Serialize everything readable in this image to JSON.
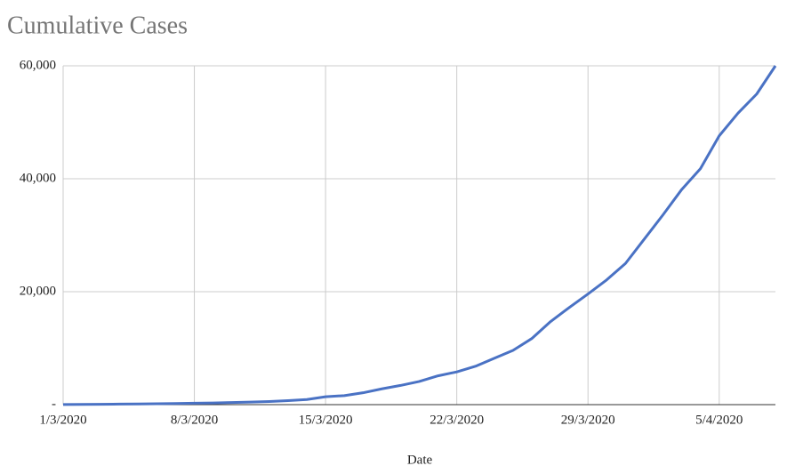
{
  "chart_data": {
    "type": "line",
    "title": "Cumulative Cases",
    "x_label": "Date",
    "x": [
      "1/3/2020",
      "2/3/2020",
      "3/3/2020",
      "4/3/2020",
      "5/3/2020",
      "6/3/2020",
      "7/3/2020",
      "8/3/2020",
      "9/3/2020",
      "10/3/2020",
      "11/3/2020",
      "12/3/2020",
      "13/3/2020",
      "14/3/2020",
      "15/3/2020",
      "16/3/2020",
      "17/3/2020",
      "18/3/2020",
      "19/3/2020",
      "20/3/2020",
      "21/3/2020",
      "22/3/2020",
      "23/3/2020",
      "24/3/2020",
      "25/3/2020",
      "26/3/2020",
      "27/3/2020",
      "28/3/2020",
      "29/3/2020",
      "30/3/2020",
      "31/3/2020",
      "1/4/2020",
      "2/4/2020",
      "3/4/2020",
      "4/4/2020",
      "5/4/2020",
      "6/4/2020",
      "7/4/2020",
      "8/4/2020"
    ],
    "series": [
      {
        "name": "Cumulative Cases",
        "color": "#4a72c4",
        "values": [
          20,
          40,
          60,
          90,
          120,
          160,
          200,
          250,
          300,
          380,
          460,
          560,
          700,
          900,
          1400,
          1600,
          2100,
          2800,
          3400,
          4100,
          5100,
          5800,
          6800,
          8200,
          9600,
          11700,
          14700,
          17200,
          19600,
          22100,
          25000,
          29300,
          33600,
          38100,
          41800,
          47600,
          51600,
          55000,
          60000
        ]
      }
    ],
    "xticks": [
      "1/3/2020",
      "8/3/2020",
      "15/3/2020",
      "22/3/2020",
      "29/3/2020",
      "5/4/2020"
    ],
    "ylim": [
      0,
      60000
    ],
    "yticks": [
      {
        "value": 0,
        "label": "-"
      },
      {
        "value": 20000,
        "label": "20,000"
      },
      {
        "value": 40000,
        "label": "40,000"
      },
      {
        "value": 60000,
        "label": "60,000"
      }
    ],
    "grid": true
  }
}
